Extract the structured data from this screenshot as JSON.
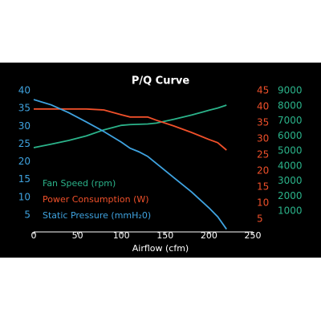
{
  "chart_data": {
    "type": "line",
    "title": "P/Q Curve",
    "x_label": "Airflow (cfm)",
    "x": [
      0,
      20,
      40,
      60,
      80,
      100,
      110,
      120,
      130,
      140,
      160,
      180,
      200,
      210,
      220
    ],
    "xlim": [
      0,
      250
    ],
    "xticks": [
      0,
      50,
      100,
      150,
      200,
      250
    ],
    "ylim": [
      0,
      40
    ],
    "yticks": [
      5,
      10,
      15,
      20,
      25,
      30,
      35,
      40
    ],
    "y2lim": [
      0,
      45
    ],
    "y2ticks": [
      5,
      10,
      15,
      20,
      25,
      30,
      35,
      40,
      45
    ],
    "y3lim": [
      0,
      9000
    ],
    "y3ticks": [
      1000,
      2000,
      3000,
      4000,
      5000,
      6000,
      7000,
      8000,
      9000
    ],
    "series": [
      {
        "name": "Fan Speed (rpm)",
        "color": "#2bb38a",
        "axis": "y3",
        "values": [
          5220,
          5450,
          5700,
          6000,
          6400,
          6700,
          6750,
          6770,
          6790,
          6850,
          7100,
          7380,
          7700,
          7850,
          8040
        ]
      },
      {
        "name": "Power Consumption (W)",
        "color": "#f0502a",
        "axis": "y2",
        "values": [
          39.3,
          39.3,
          39.3,
          39.3,
          39,
          37.5,
          36.8,
          36.8,
          36.8,
          35.8,
          34,
          32,
          29.8,
          28.8,
          26.5
        ]
      },
      {
        "name": "Static Pressure (mmH₂0)",
        "color": "#3fa3e0",
        "axis": "y",
        "values": [
          37.5,
          36,
          33.8,
          31.2,
          28.5,
          25.5,
          23.8,
          22.8,
          21.5,
          19.5,
          15.5,
          11.5,
          7,
          4.5,
          1
        ]
      }
    ]
  }
}
